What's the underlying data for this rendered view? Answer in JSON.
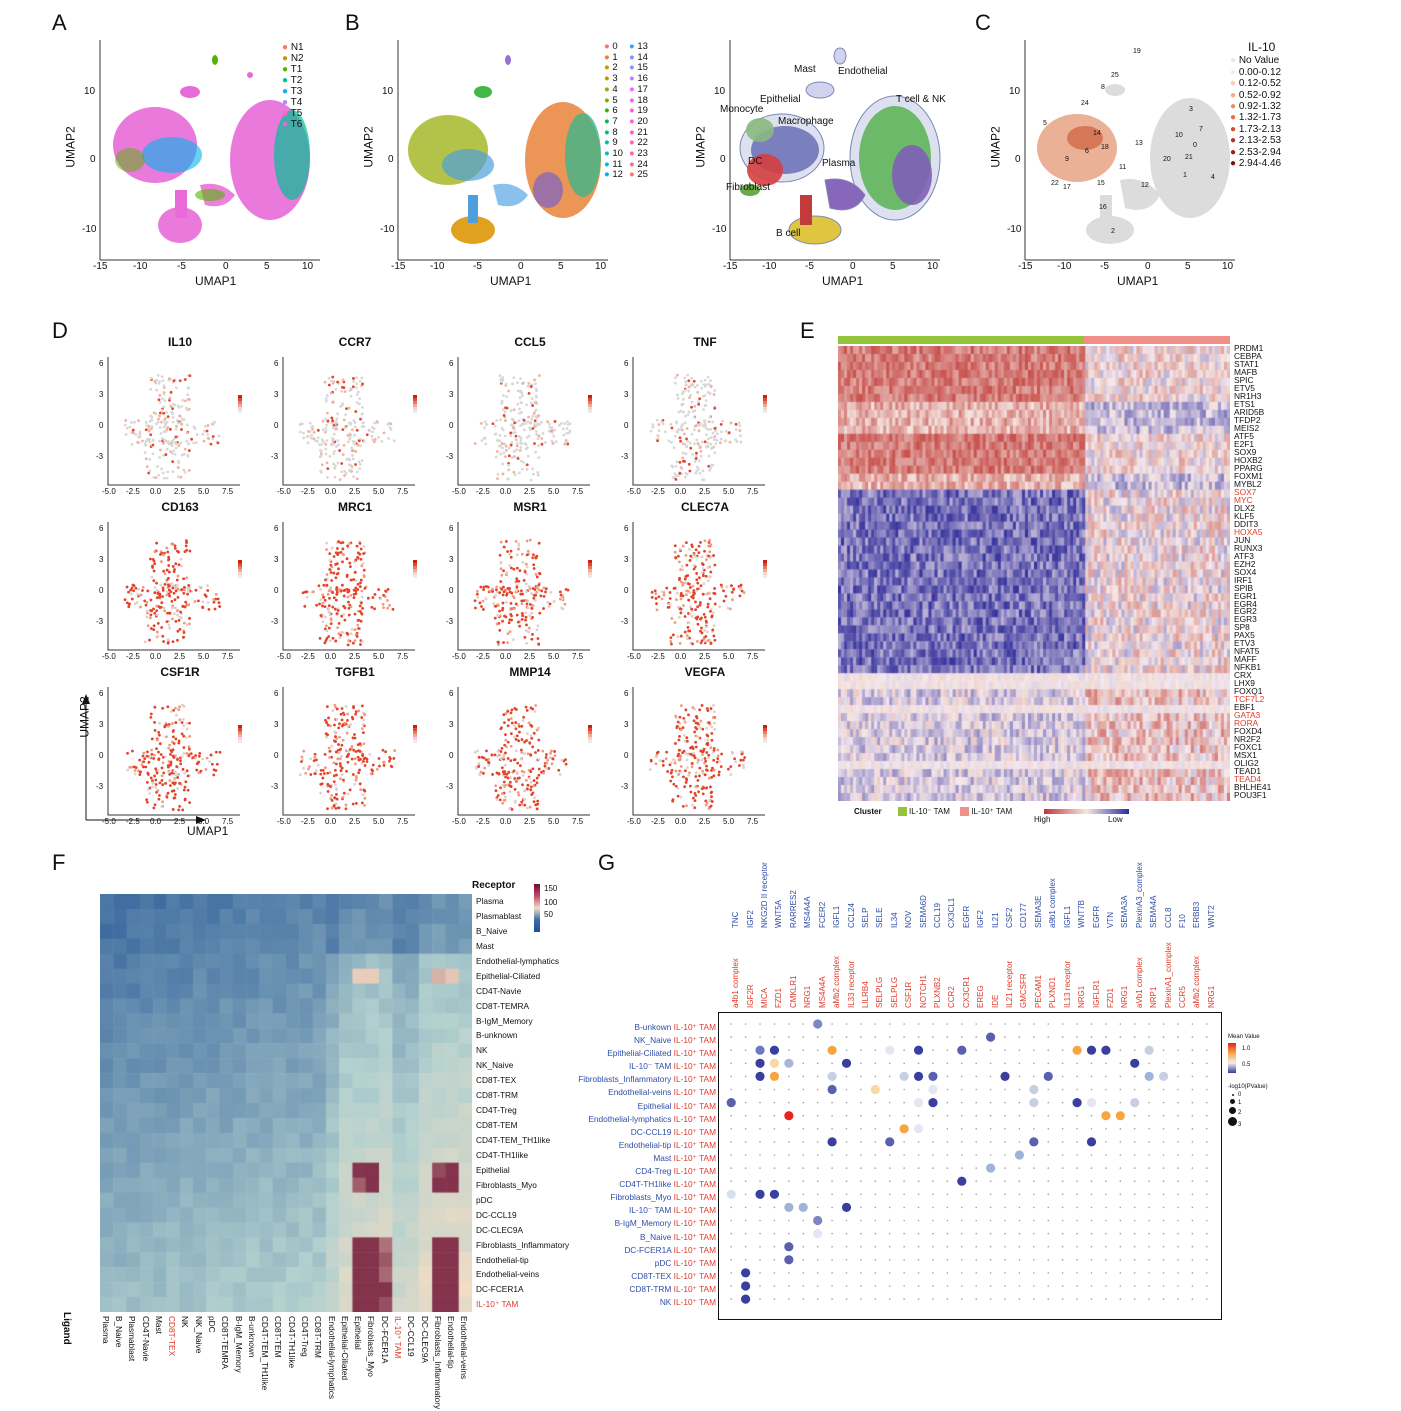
{
  "panels": {
    "A": {
      "letter": "A",
      "xlabel": "UMAP1",
      "ylabel": "UMAP2",
      "xticks": [
        "-15",
        "-10",
        "-5",
        "0",
        "5",
        "10"
      ],
      "yticks": [
        "10",
        "0",
        "-10"
      ],
      "legend": [
        "N1",
        "N2",
        "T1",
        "T2",
        "T3",
        "T4",
        "T5",
        "T6"
      ],
      "colors": [
        "#f8766d",
        "#c49a00",
        "#53b400",
        "#00c094",
        "#00b6eb",
        "#a58aff",
        "#fb61d7",
        "#e86ad8"
      ]
    },
    "B": {
      "letter": "B",
      "xlabel": "UMAP1",
      "ylabel": "UMAP2",
      "xticks": [
        "-15",
        "-10",
        "-5",
        "0",
        "5",
        "10"
      ],
      "yticks": [
        "10",
        "0",
        "-10"
      ],
      "legend_col1": [
        "0",
        "1",
        "2",
        "3",
        "4",
        "5",
        "6",
        "7",
        "8",
        "9",
        "10",
        "11",
        "12"
      ],
      "legend_col2": [
        "13",
        "14",
        "15",
        "16",
        "17",
        "18",
        "19",
        "20",
        "21",
        "22",
        "23",
        "24",
        "25"
      ],
      "cell_labels": [
        "Mast",
        "Endothelial",
        "Epithelial",
        "T cell & NK",
        "Monocyte",
        "Macrophage",
        "DC",
        "Plasma",
        "Fibroblast",
        "B cell"
      ]
    },
    "C": {
      "letter": "C",
      "xlabel": "UMAP1",
      "ylabel": "UMAP2",
      "xticks": [
        "-15",
        "-10",
        "-5",
        "0",
        "5",
        "10"
      ],
      "yticks": [
        "10",
        "0",
        "-10"
      ],
      "legend_title": "IL-10",
      "legend": [
        "No Value",
        "0.00-0.12",
        "0.12-0.52",
        "0.52-0.92",
        "0.92-1.32",
        "1.32-1.73",
        "1.73-2.13",
        "2.13-2.53",
        "2.53-2.94",
        "2.94-4.46"
      ],
      "legend_colors": [
        "#e8e8e8",
        "#fde8dc",
        "#f9c9b0",
        "#f5a98a",
        "#f08a66",
        "#e86a48",
        "#d44a30",
        "#bb3020",
        "#9e1e16",
        "#7a0d0d"
      ],
      "cluster_numbers": [
        "19",
        "25",
        "8",
        "24",
        "3",
        "7",
        "5",
        "14",
        "13",
        "10",
        "0",
        "18",
        "9",
        "6",
        "11",
        "20",
        "21",
        "1",
        "4",
        "15",
        "12",
        "16",
        "22",
        "17",
        "2"
      ]
    },
    "D": {
      "letter": "D",
      "genes": [
        "IL10",
        "CCR7",
        "CCL5",
        "TNF",
        "CD163",
        "MRC1",
        "MSR1",
        "CLEC7A",
        "CSF1R",
        "TGFB1",
        "MMP14",
        "VEGFA"
      ],
      "xticks": [
        "-5.0",
        "-2.5",
        "0.0",
        "2.5",
        "5.0",
        "7.5"
      ],
      "yticks": [
        "6",
        "3",
        "0",
        "-3"
      ],
      "xlabel": "UMAP1",
      "ylabel": "UMAP2"
    },
    "E": {
      "letter": "E",
      "genes": [
        "PRDM1",
        "CEBPA",
        "STAT1",
        "MAFB",
        "SPIC",
        "ETV5",
        "NR1H3",
        "ETS1",
        "ARID5B",
        "TFDP2",
        "MEIS2",
        "ATF5",
        "E2F1",
        "SOX9",
        "HOXB2",
        "PPARG",
        "FOXM1",
        "MYBL2",
        "SOX7",
        "MYC",
        "DLX2",
        "KLF5",
        "DDIT3",
        "HOXA5",
        "JUN",
        "RUNX3",
        "ATF3",
        "EZH2",
        "SOX4",
        "IRF1",
        "SPIB",
        "EGR1",
        "EGR4",
        "EGR2",
        "EGR3",
        "SP8",
        "PAX5",
        "ETV3",
        "NFAT5",
        "MAFF",
        "NFKB1",
        "CRX",
        "LHX9",
        "FOXQ1",
        "TCF7L2",
        "EBF1",
        "GATA3",
        "RORA",
        "FOXD4",
        "NR2F2",
        "FOXC1",
        "MSX1",
        "OLIG2",
        "TEAD1",
        "TEAD4",
        "BHLHE41",
        "POU3F1"
      ],
      "red_genes": [
        "SOX7",
        "MYC",
        "HOXA5",
        "TCF7L2",
        "GATA3",
        "RORA",
        "TEAD4"
      ],
      "cluster_label": "Cluster",
      "cluster1": "IL-10⁻ TAM",
      "cluster2": "IL-10⁺ TAM",
      "high": "High",
      "low": "Low"
    },
    "F": {
      "letter": "F",
      "receptor_title": "Receptor",
      "ligand_title": "Ligand",
      "scale": [
        "150",
        "100",
        "50"
      ],
      "rows": [
        "Plasma",
        "Plasmablast",
        "B_Naive",
        "Mast",
        "Endothelial-lymphatics",
        "Epithelial-Ciliated",
        "CD4T-Navie",
        "CD8T-TEMRA",
        "B-IgM_Memory",
        "B-unknown",
        "NK",
        "NK_Naive",
        "CD8T-TEX",
        "CD8T-TRM",
        "CD4T-Treg",
        "CD8T-TEM",
        "CD4T-TEM_TH1like",
        "CD4T-TH1like",
        "Epithelial",
        "Fibroblasts_Myo",
        "pDC",
        "DC-CCL19",
        "DC-CLEC9A",
        "Fibroblasts_Inflammatory",
        "Endothelial-tip",
        "Endothelial-veins",
        "DC-FCER1A",
        "IL-10⁺ TAM"
      ],
      "cols": [
        "Plasma",
        "B_Naive",
        "Plasmablast",
        "CD4T-Navie",
        "Mast",
        "CD8T-TEX",
        "NK",
        "NK_Naive",
        "pDC",
        "CD8T-TEMRA",
        "B-IgM_Memory",
        "B-unknown",
        "CD4T-TEM_TH1like",
        "CD8T-TEM",
        "CD4T-TH1like",
        "CD4T-Treg",
        "CD8T-TRM",
        "Endothelial-lymphatics",
        "Epithelial-Ciliated",
        "Epithelial",
        "Fibroblasts_Myo",
        "DC-FCER1A",
        "IL-10⁺ TAM",
        "DC-CCL19",
        "DC-CLEC9A",
        "Fibroblasts_Inflammatory",
        "Endothelial-tip",
        "Endothelial-veins"
      ]
    },
    "G": {
      "letter": "G",
      "receptors": [
        "TNC",
        "IGF2",
        "NKG2D II receptor",
        "WNT5A",
        "RARRES2",
        "MS4A4A",
        "FCER2",
        "IGFL1",
        "CCL24",
        "SELP",
        "SELE",
        "IL34",
        "NOV",
        "SEMA6D",
        "CCL19",
        "CX3CL1",
        "EGFR",
        "IGF2",
        "IL21",
        "CSF2",
        "CD177",
        "SEMA3E",
        "a9b1 complex",
        "IGFL1",
        "WNT7B",
        "EGFR",
        "VTN",
        "SEMA3A",
        "PlexinA3_complex",
        "SEMA4A",
        "CCL8",
        "F10",
        "ERBB3",
        "WNT2"
      ],
      "ligands": [
        "a4b1 complex",
        "IGF2R",
        "MICA",
        "FZD1",
        "CMKLR1",
        "NRG1",
        "MS4A4A",
        "aMb2 complex",
        "IL33 receptor",
        "LILRB4",
        "SELPLG",
        "SELPLG",
        "CSF1R",
        "NOTCH1",
        "PLXNB2",
        "CCR2",
        "CX3CR1",
        "EREG",
        "IDE",
        "IL21 receptor",
        "GMCSFR",
        "PECAM1",
        "PLXND1",
        "IL13 receptor",
        "NRG1",
        "IGFLR1",
        "FZD1",
        "NRG1",
        "aVb1 complex",
        "NRP1",
        "PlexinA1_complex",
        "CCR5",
        "aMb2 complex",
        "NRG1",
        "FZD2"
      ],
      "rows_left": [
        "B-unkown",
        "NK_Naive",
        "Epithelial-Ciliated",
        "IL-10⁻ TAM",
        "Fibroblasts_Inflammatory",
        "Endothelial-veins",
        "Epithelial",
        "Endothelial-lymphatics",
        "DC-CCL19",
        "Endothelial-tip",
        "Mast",
        "CD4-Treg",
        "CD4T-TH1like",
        "Fibroblasts_Myo",
        "IL-10⁻ TAM",
        "B-IgM_Memory",
        "B_Naive",
        "DC-FCER1A",
        "pDC",
        "CD8T-TEX",
        "CD8T-TRM",
        "NK"
      ],
      "rows_right": "IL-10⁺ TAM",
      "mean_title": "Mean Value",
      "mean_ticks": [
        "1.0",
        "0.5"
      ],
      "pval_title": "-log10(PValue)",
      "pval_ticks": [
        "0",
        "1",
        "2",
        "3"
      ]
    }
  }
}
